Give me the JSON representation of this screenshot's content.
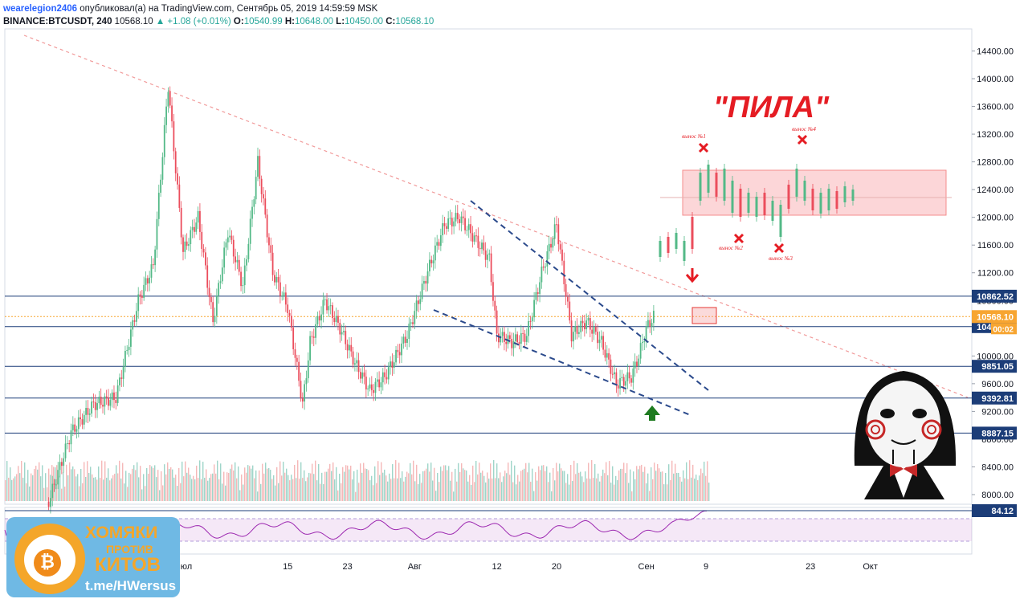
{
  "header": {
    "user": "wearelegion2406",
    "published": "опубликовал(а) на TradingView.com, Сентябрь 05, 2019 14:59:59 MSK",
    "symbol": "BINANCE:BTCUSDT, 240",
    "price": "10568.10",
    "change": "▲ +1.08 (+0.01%)",
    "o_label": "O:",
    "o": "10540.99",
    "h_label": "H:",
    "h": "10648.00",
    "l_label": "L:",
    "l": "10450.00",
    "c_label": "C:",
    "c": "10568.10"
  },
  "colors": {
    "up": "#26a69a",
    "up_candle": "#53b987",
    "down_candle": "#eb4d5c",
    "trend": "#f19a9a",
    "channel": "#2b4a8c",
    "level": "#1c3d78",
    "rsi": "#9c27b0",
    "saw_box": "#f8a5a8",
    "annotation_red": "#e51c23"
  },
  "annotations": {
    "saw_title": "\"ПИЛА\"",
    "marks": [
      "вынос №1",
      "вынос №2",
      "вынос №3",
      "вынос №4"
    ]
  },
  "badge": {
    "line1": "ХОМЯКИ",
    "line2": "ПРОТИВ",
    "line3": "КИТОВ",
    "link": "t.me/HWersus"
  },
  "chart_data": {
    "type": "candlestick",
    "ylim": [
      7800,
      14650
    ],
    "y_ticks": [
      8000,
      8400,
      8800,
      9200,
      9600,
      10000,
      10400,
      10800,
      11200,
      11600,
      12000,
      12400,
      12800,
      13200,
      13600,
      14000,
      14400
    ],
    "y_tick_labels": [
      "8000.00",
      "8400.00",
      "8800.00",
      "9200.00",
      "9600.00",
      "10000.00",
      "10400.00",
      "10800.00",
      "11200.00",
      "11600.00",
      "12000.00",
      "12400.00",
      "12800.00",
      "13200.00",
      "13600.00",
      "14000.00",
      "14400.00"
    ],
    "x_labels": [
      {
        "text": "Июл",
        "day": 0
      },
      {
        "text": "15",
        "day": 14
      },
      {
        "text": "23",
        "day": 22
      },
      {
        "text": "Авг",
        "day": 31
      },
      {
        "text": "12",
        "day": 42
      },
      {
        "text": "20",
        "day": 50
      },
      {
        "text": "Сен",
        "day": 62
      },
      {
        "text": "9",
        "day": 70
      },
      {
        "text": "23",
        "day": 84
      },
      {
        "text": "Окт",
        "day": 92
      }
    ],
    "price_levels": [
      {
        "label": "10862.52",
        "value": 10862.52
      },
      {
        "label": "10423.28",
        "value": 10423.28
      },
      {
        "label": "9851.05",
        "value": 9851.05
      },
      {
        "label": "9392.81",
        "value": 9392.81
      },
      {
        "label": "8887.15",
        "value": 8887.15
      }
    ],
    "current_price": {
      "label": "10568.10",
      "value": 10568.1,
      "countdown": "00:02"
    },
    "price_path": [
      {
        "day": -18,
        "value": 7900
      },
      {
        "day": -15,
        "value": 8900
      },
      {
        "day": -12,
        "value": 9300
      },
      {
        "day": -9,
        "value": 9400
      },
      {
        "day": -6,
        "value": 10800
      },
      {
        "day": -4,
        "value": 11300
      },
      {
        "day": -2,
        "value": 13900
      },
      {
        "day": 0,
        "value": 11500
      },
      {
        "day": 2,
        "value": 12000
      },
      {
        "day": 4,
        "value": 10500
      },
      {
        "day": 6,
        "value": 11800
      },
      {
        "day": 8,
        "value": 11000
      },
      {
        "day": 10,
        "value": 12800
      },
      {
        "day": 12,
        "value": 11200
      },
      {
        "day": 14,
        "value": 10700
      },
      {
        "day": 16,
        "value": 9300
      },
      {
        "day": 17,
        "value": 10200
      },
      {
        "day": 19,
        "value": 10800
      },
      {
        "day": 21,
        "value": 10400
      },
      {
        "day": 23,
        "value": 9900
      },
      {
        "day": 25,
        "value": 9500
      },
      {
        "day": 27,
        "value": 9700
      },
      {
        "day": 30,
        "value": 10300
      },
      {
        "day": 33,
        "value": 11300
      },
      {
        "day": 35,
        "value": 11900
      },
      {
        "day": 37,
        "value": 12000
      },
      {
        "day": 39,
        "value": 11700
      },
      {
        "day": 41,
        "value": 11400
      },
      {
        "day": 42,
        "value": 10300
      },
      {
        "day": 44,
        "value": 10200
      },
      {
        "day": 46,
        "value": 10300
      },
      {
        "day": 48,
        "value": 11200
      },
      {
        "day": 50,
        "value": 11900
      },
      {
        "day": 52,
        "value": 10300
      },
      {
        "day": 54,
        "value": 10500
      },
      {
        "day": 56,
        "value": 10200
      },
      {
        "day": 58,
        "value": 9600
      },
      {
        "day": 60,
        "value": 9700
      },
      {
        "day": 61,
        "value": 10000
      },
      {
        "day": 62,
        "value": 10400
      },
      {
        "day": 63,
        "value": 10568.1
      }
    ],
    "rsi": {
      "last_label": "84.12",
      "last_value": 84.12,
      "upper": 70,
      "lower": 30
    }
  }
}
